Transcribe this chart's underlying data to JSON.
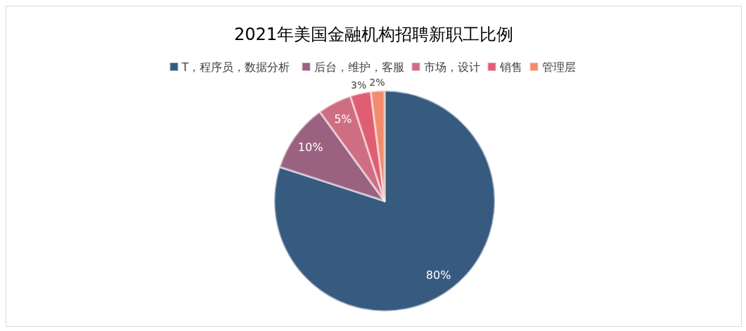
{
  "chart_data": {
    "type": "pie",
    "title": "2021年美国金融机构招聘新职工比例",
    "categories": [
      "T，程序员，数据分析",
      "后台，维护，客服",
      "市场，设计",
      "销售",
      "管理层"
    ],
    "values": [
      80,
      10,
      5,
      3,
      2
    ],
    "colors": [
      "#375a7f",
      "#9a6280",
      "#cf6e82",
      "#e05e72",
      "#f38c6e"
    ],
    "value_labels": [
      "80%",
      "10%",
      "5%",
      "3%",
      "2%"
    ],
    "legend": "top"
  }
}
